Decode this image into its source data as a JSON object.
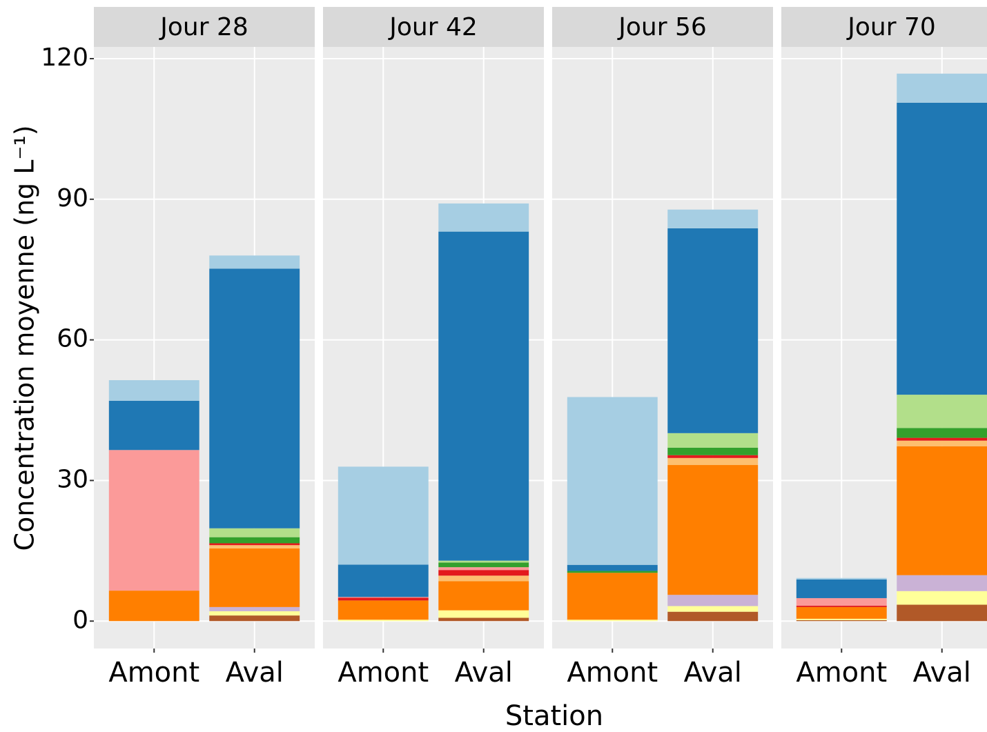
{
  "ylabel": "Concentration moyenne (ng L⁻¹)",
  "xlabel": "Station",
  "chart_data": [
    {
      "type": "bar",
      "stacked": true,
      "title": "Jour 28",
      "categories": [
        "Amont",
        "Aval"
      ],
      "ylim": [
        -5.85,
        122.5
      ],
      "yticks": [
        0,
        30,
        60,
        90,
        120
      ],
      "grid": true,
      "series": [
        {
          "color": "#b15928",
          "values": [
            0,
            1.2
          ]
        },
        {
          "color": "#ffff99",
          "values": [
            0,
            0.9
          ]
        },
        {
          "color": "#cab2d6",
          "values": [
            0,
            0.9
          ]
        },
        {
          "color": "#ff7f00",
          "values": [
            6.5,
            12.5
          ]
        },
        {
          "color": "#fdbf6f",
          "values": [
            0,
            0.7
          ]
        },
        {
          "color": "#e31a1c",
          "values": [
            0,
            0.4
          ]
        },
        {
          "color": "#fb9a99",
          "values": [
            30,
            0
          ]
        },
        {
          "color": "#33a02c",
          "values": [
            0,
            1.3
          ]
        },
        {
          "color": "#b2df8a",
          "values": [
            0,
            1.9
          ]
        },
        {
          "color": "#1f78b4",
          "values": [
            10.5,
            55.4
          ]
        },
        {
          "color": "#a6cee3",
          "values": [
            4.4,
            2.8
          ]
        }
      ]
    },
    {
      "type": "bar",
      "stacked": true,
      "title": "Jour 42",
      "categories": [
        "Amont",
        "Aval"
      ],
      "ylim": [
        -5.85,
        122.5
      ],
      "yticks": [
        0,
        30,
        60,
        90,
        120
      ],
      "grid": true,
      "series": [
        {
          "color": "#b15928",
          "values": [
            0,
            0.7
          ]
        },
        {
          "color": "#ffff99",
          "values": [
            0.3,
            1.6
          ]
        },
        {
          "color": "#cab2d6",
          "values": [
            0,
            0
          ]
        },
        {
          "color": "#ff7f00",
          "values": [
            4.1,
            6.2
          ]
        },
        {
          "color": "#fdbf6f",
          "values": [
            0,
            1.2
          ]
        },
        {
          "color": "#e31a1c",
          "values": [
            0.6,
            1.2
          ]
        },
        {
          "color": "#fb9a99",
          "values": [
            0.15,
            0.6
          ]
        },
        {
          "color": "#33a02c",
          "values": [
            0,
            1
          ]
        },
        {
          "color": "#b2df8a",
          "values": [
            0,
            0.4
          ]
        },
        {
          "color": "#1f78b4",
          "values": [
            6.9,
            70.2
          ]
        },
        {
          "color": "#a6cee3",
          "values": [
            20.9,
            6
          ]
        }
      ]
    },
    {
      "type": "bar",
      "stacked": true,
      "title": "Jour 56",
      "categories": [
        "Amont",
        "Aval"
      ],
      "ylim": [
        -5.85,
        122.5
      ],
      "yticks": [
        0,
        30,
        60,
        90,
        120
      ],
      "grid": true,
      "series": [
        {
          "color": "#b15928",
          "values": [
            0,
            2
          ]
        },
        {
          "color": "#ffff99",
          "values": [
            0.3,
            1.2
          ]
        },
        {
          "color": "#cab2d6",
          "values": [
            0,
            2.4
          ]
        },
        {
          "color": "#ff7f00",
          "values": [
            10,
            27.7
          ]
        },
        {
          "color": "#fdbf6f",
          "values": [
            0,
            1.5
          ]
        },
        {
          "color": "#e31a1c",
          "values": [
            0,
            0.6
          ]
        },
        {
          "color": "#fb9a99",
          "values": [
            0,
            0
          ]
        },
        {
          "color": "#33a02c",
          "values": [
            0.4,
            1.6
          ]
        },
        {
          "color": "#b2df8a",
          "values": [
            0,
            3.1
          ]
        },
        {
          "color": "#1f78b4",
          "values": [
            1.3,
            43.7
          ]
        },
        {
          "color": "#a6cee3",
          "values": [
            35.8,
            4
          ]
        }
      ]
    },
    {
      "type": "bar",
      "stacked": true,
      "title": "Jour 70",
      "categories": [
        "Amont",
        "Aval"
      ],
      "ylim": [
        -5.85,
        122.5
      ],
      "yticks": [
        0,
        30,
        60,
        90,
        120
      ],
      "grid": true,
      "series": [
        {
          "color": "#b15928",
          "values": [
            0.2,
            3.5
          ]
        },
        {
          "color": "#ffff99",
          "values": [
            0.3,
            2.9
          ]
        },
        {
          "color": "#cab2d6",
          "values": [
            0,
            3.4
          ]
        },
        {
          "color": "#ff7f00",
          "values": [
            2.5,
            27.5
          ]
        },
        {
          "color": "#fdbf6f",
          "values": [
            0,
            1.2
          ]
        },
        {
          "color": "#e31a1c",
          "values": [
            0.3,
            0.6
          ]
        },
        {
          "color": "#fb9a99",
          "values": [
            1.6,
            0
          ]
        },
        {
          "color": "#33a02c",
          "values": [
            0,
            2.1
          ]
        },
        {
          "color": "#b2df8a",
          "values": [
            0,
            7.1
          ]
        },
        {
          "color": "#1f78b4",
          "values": [
            4,
            62.3
          ]
        },
        {
          "color": "#a6cee3",
          "values": [
            0.3,
            6.2
          ]
        }
      ]
    }
  ]
}
